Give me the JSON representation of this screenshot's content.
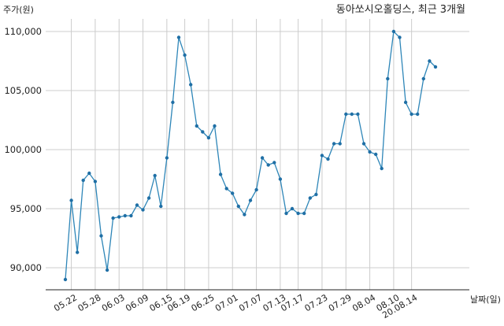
{
  "chart_data": {
    "type": "line",
    "title": "동아쏘시오홀딩스, 최근 3개월",
    "ylabel": "주가(원)",
    "xlabel": "날짜(일)",
    "ylim": [
      88500,
      111000
    ],
    "yticks": [
      90000,
      95000,
      100000,
      105000,
      110000
    ],
    "ytick_labels": [
      "90,000",
      "95,000",
      "100,000",
      "105,000",
      "110,000"
    ],
    "xtick_labels": [
      "05.22",
      "05.28",
      "06.03",
      "06.09",
      "06.15",
      "06.19",
      "06.25",
      "07.01",
      "07.07",
      "07.13",
      "07.17",
      "07.23",
      "07.29",
      "08.04",
      "08.10",
      "20.08.14"
    ],
    "xtick_index": [
      1,
      5,
      9,
      13,
      17,
      20,
      24,
      28,
      32,
      36,
      39,
      43,
      47,
      51,
      55,
      58
    ],
    "grid": true,
    "colors": {
      "line": "#2e86b8",
      "marker": "#1f6fa5",
      "grid": "#cccccc",
      "axis": "#222222"
    },
    "series": [
      {
        "values": [
          89000,
          95700,
          91300,
          97400,
          98000,
          97300,
          92700,
          89800,
          94200,
          94300,
          94400,
          94400,
          95300,
          94900,
          95900,
          97800,
          95200,
          99300,
          104000,
          109500,
          108000,
          105500,
          102000,
          101500,
          101000,
          102000,
          97900,
          96700,
          96300,
          95200,
          94500,
          95700,
          96600,
          99300,
          98700,
          98900,
          97500,
          94600,
          95000,
          94600,
          94600,
          95900,
          96200,
          99500,
          99200,
          100500,
          100500,
          103000,
          103000,
          103000,
          100500,
          99800,
          99600,
          98400,
          106000,
          110000,
          109500,
          104000,
          103000,
          103000,
          106000,
          107500,
          107000
        ]
      }
    ]
  }
}
